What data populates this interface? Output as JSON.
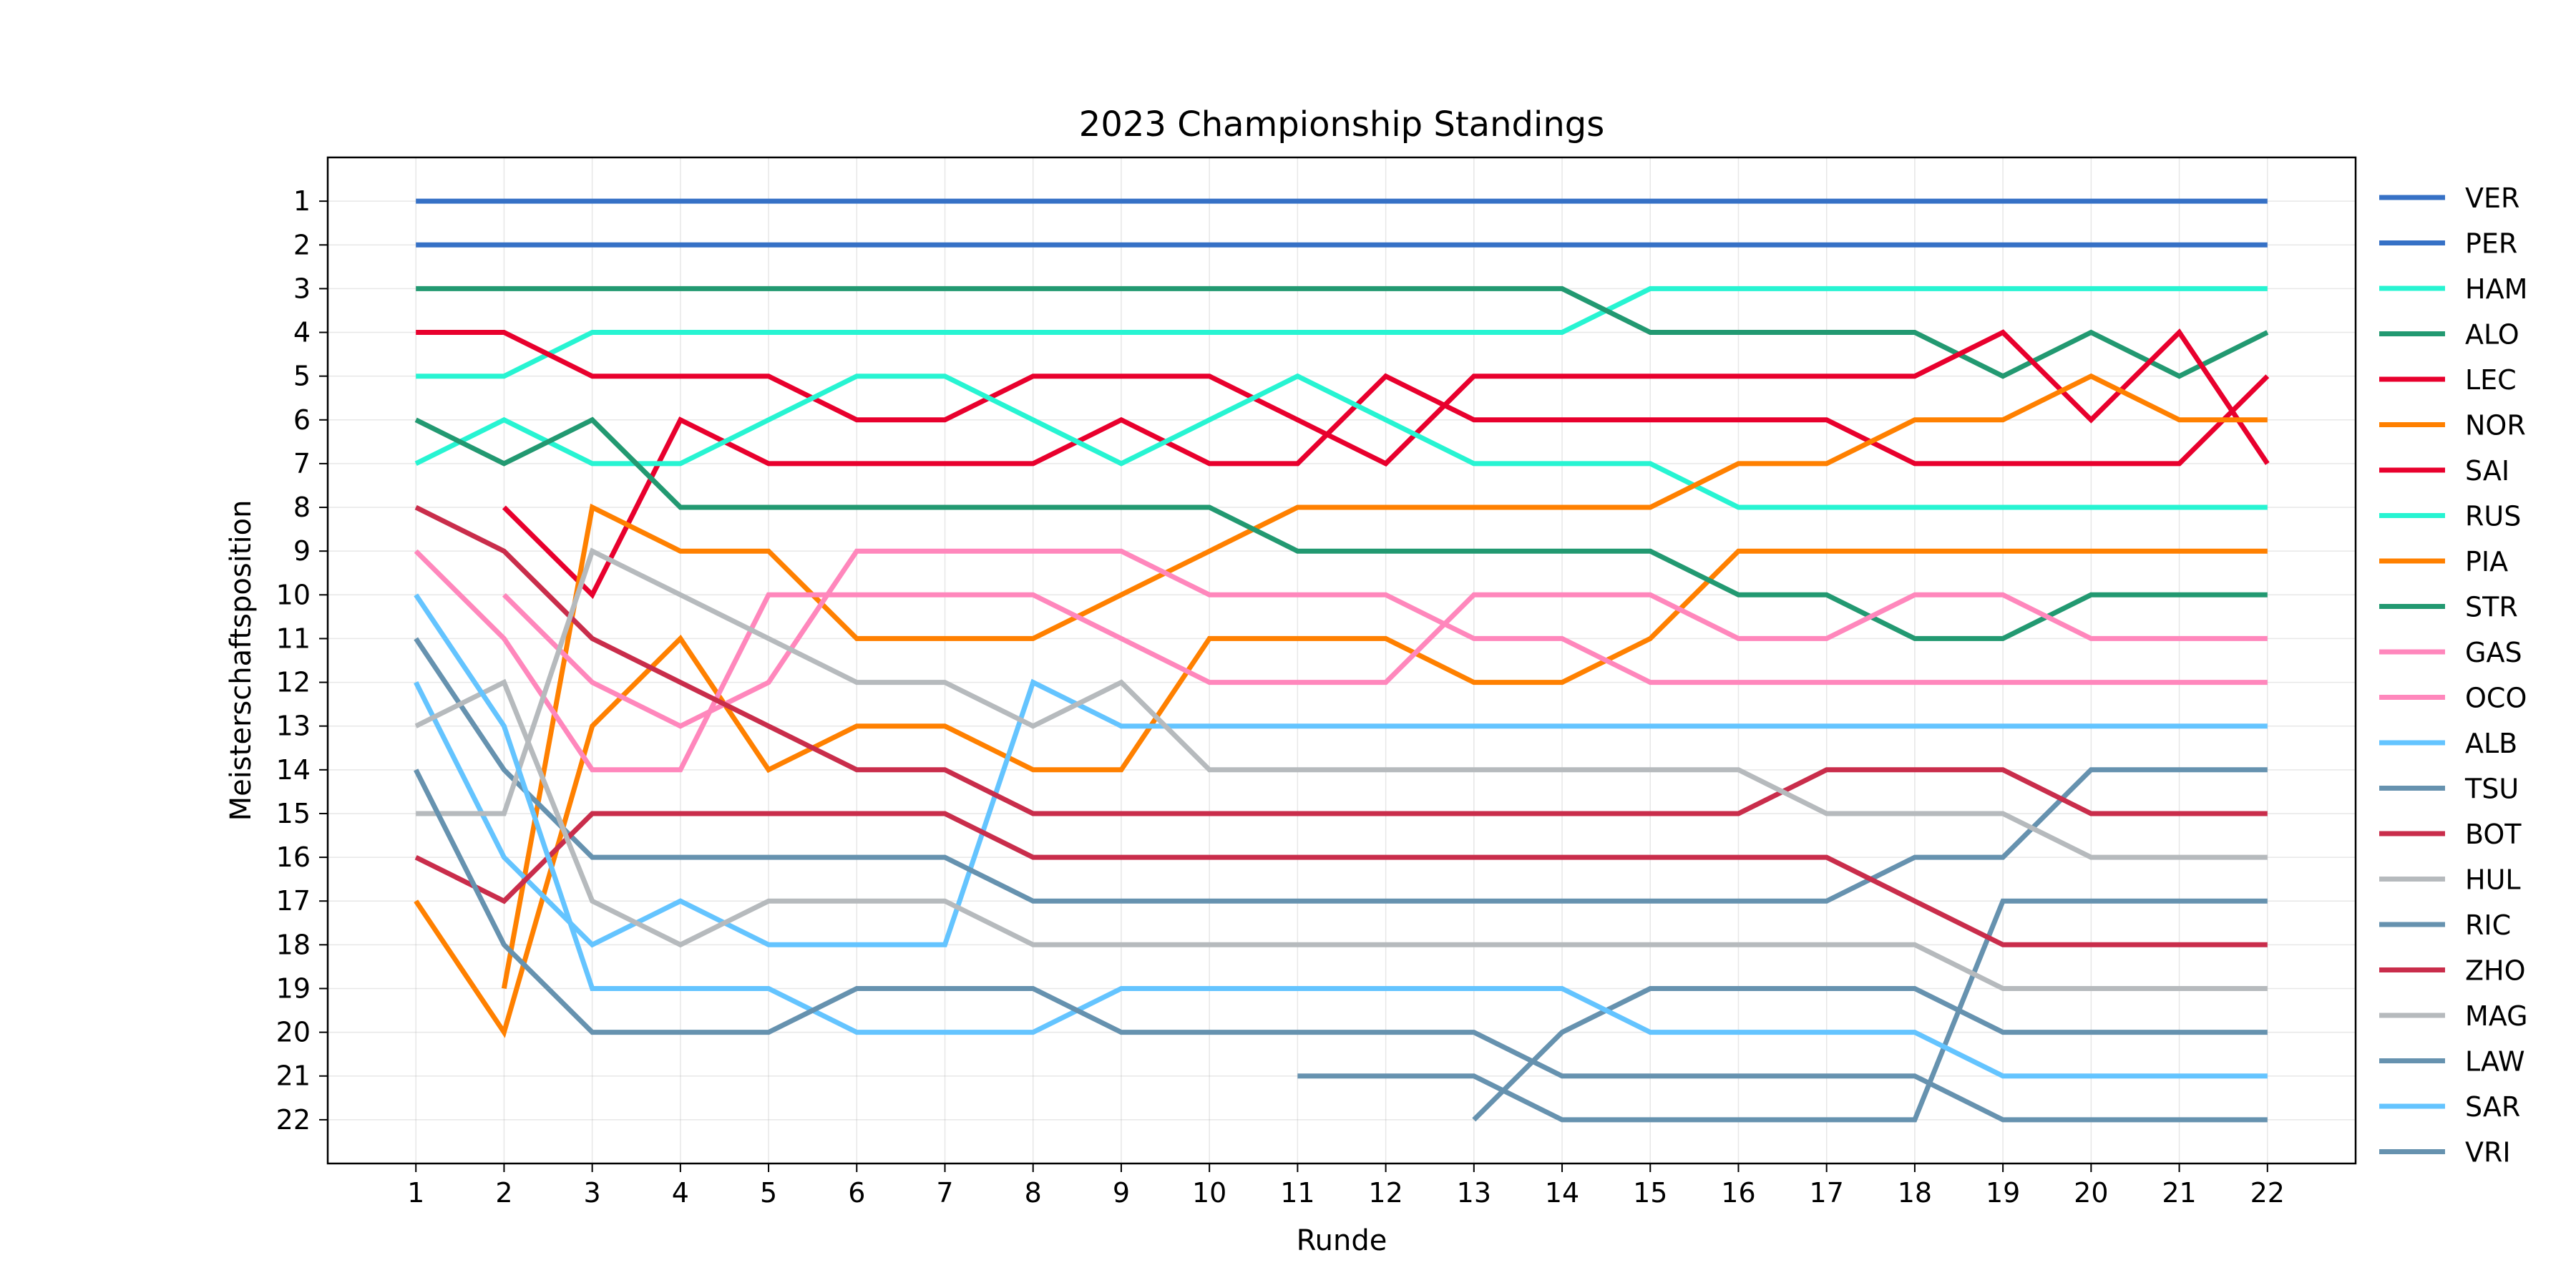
{
  "chart_data": {
    "type": "line",
    "title": "2023 Championship Standings",
    "xlabel": "Runde",
    "ylabel": "Meisterschaftsposition",
    "x": [
      1,
      2,
      3,
      4,
      5,
      6,
      7,
      8,
      9,
      10,
      11,
      12,
      13,
      14,
      15,
      16,
      17,
      18,
      19,
      20,
      21,
      22
    ],
    "xlim": [
      0,
      23
    ],
    "ylim": [
      23,
      0
    ],
    "y_inverted": true,
    "yticks": [
      1,
      2,
      3,
      4,
      5,
      6,
      7,
      8,
      9,
      10,
      11,
      12,
      13,
      14,
      15,
      16,
      17,
      18,
      19,
      20,
      21,
      22
    ],
    "grid": true,
    "legend_position": "outside right",
    "series": [
      {
        "name": "VER",
        "color": "#3671C6",
        "values": [
          1,
          1,
          1,
          1,
          1,
          1,
          1,
          1,
          1,
          1,
          1,
          1,
          1,
          1,
          1,
          1,
          1,
          1,
          1,
          1,
          1,
          1
        ]
      },
      {
        "name": "PER",
        "color": "#3671C6",
        "values": [
          2,
          2,
          2,
          2,
          2,
          2,
          2,
          2,
          2,
          2,
          2,
          2,
          2,
          2,
          2,
          2,
          2,
          2,
          2,
          2,
          2,
          2
        ]
      },
      {
        "name": "HAM",
        "color": "#27F4D2",
        "values": [
          5,
          5,
          4,
          4,
          4,
          4,
          4,
          4,
          4,
          4,
          4,
          4,
          4,
          4,
          3,
          3,
          3,
          3,
          3,
          3,
          3,
          3
        ]
      },
      {
        "name": "ALO",
        "color": "#229971",
        "values": [
          3,
          3,
          3,
          3,
          3,
          3,
          3,
          3,
          3,
          3,
          3,
          3,
          3,
          3,
          4,
          4,
          4,
          4,
          5,
          4,
          5,
          4
        ]
      },
      {
        "name": "LEC",
        "color": "#E8002D",
        "values": [
          4,
          4,
          5,
          5,
          5,
          6,
          6,
          5,
          5,
          5,
          6,
          7,
          5,
          5,
          5,
          5,
          5,
          5,
          4,
          6,
          4,
          7
        ]
      },
      {
        "name": "NOR",
        "color": "#FF8000",
        "values": [
          17,
          20,
          13,
          11,
          14,
          13,
          13,
          14,
          14,
          11,
          11,
          11,
          12,
          12,
          11,
          9,
          9,
          9,
          9,
          9,
          9,
          9
        ]
      },
      {
        "name": "SAI",
        "color": "#E8002D",
        "values": [
          null,
          8,
          10,
          6,
          7,
          7,
          7,
          7,
          6,
          7,
          7,
          5,
          6,
          6,
          6,
          6,
          6,
          7,
          7,
          7,
          7,
          5
        ]
      },
      {
        "name": "RUS",
        "color": "#27F4D2",
        "values": [
          7,
          6,
          7,
          7,
          6,
          5,
          5,
          6,
          7,
          6,
          5,
          6,
          7,
          7,
          7,
          8,
          8,
          8,
          8,
          8,
          8,
          8
        ]
      },
      {
        "name": "PIA",
        "color": "#FF8000",
        "values": [
          null,
          19,
          8,
          9,
          9,
          11,
          11,
          11,
          10,
          9,
          8,
          8,
          8,
          8,
          8,
          7,
          7,
          6,
          6,
          5,
          6,
          6
        ]
      },
      {
        "name": "STR",
        "color": "#229971",
        "values": [
          6,
          7,
          6,
          8,
          8,
          8,
          8,
          8,
          8,
          8,
          9,
          9,
          9,
          9,
          9,
          10,
          10,
          11,
          11,
          10,
          10,
          10
        ]
      },
      {
        "name": "GAS",
        "color": "#FF87BC",
        "values": [
          9,
          11,
          14,
          14,
          10,
          10,
          10,
          10,
          11,
          12,
          12,
          12,
          10,
          10,
          10,
          11,
          11,
          10,
          10,
          11,
          11,
          11
        ]
      },
      {
        "name": "OCO",
        "color": "#FF87BC",
        "values": [
          null,
          10,
          12,
          13,
          12,
          9,
          9,
          9,
          9,
          10,
          10,
          10,
          11,
          11,
          12,
          12,
          12,
          12,
          12,
          12,
          12,
          12
        ]
      },
      {
        "name": "ALB",
        "color": "#64C4FF",
        "values": [
          12,
          16,
          18,
          17,
          18,
          18,
          18,
          12,
          13,
          13,
          13,
          13,
          13,
          13,
          13,
          13,
          13,
          13,
          13,
          13,
          13,
          13
        ]
      },
      {
        "name": "TSU",
        "color": "#6692AF",
        "values": [
          11,
          14,
          16,
          16,
          16,
          16,
          16,
          17,
          17,
          17,
          17,
          17,
          17,
          17,
          17,
          17,
          17,
          16,
          16,
          14,
          14,
          14
        ]
      },
      {
        "name": "BOT",
        "color": "#C92D4B",
        "values": [
          8,
          9,
          11,
          12,
          13,
          14,
          14,
          15,
          15,
          15,
          15,
          15,
          15,
          15,
          15,
          15,
          14,
          14,
          14,
          15,
          15,
          15
        ]
      },
      {
        "name": "HUL",
        "color": "#B6BABD",
        "values": [
          15,
          15,
          9,
          10,
          11,
          12,
          12,
          13,
          12,
          14,
          14,
          14,
          14,
          14,
          14,
          14,
          15,
          15,
          15,
          16,
          16,
          16
        ]
      },
      {
        "name": "RIC",
        "color": "#6692AF",
        "values": [
          null,
          null,
          null,
          null,
          null,
          null,
          null,
          null,
          null,
          null,
          21,
          21,
          21,
          22,
          22,
          22,
          22,
          22,
          17,
          17,
          17,
          17
        ]
      },
      {
        "name": "ZHO",
        "color": "#C92D4B",
        "values": [
          16,
          17,
          15,
          15,
          15,
          15,
          15,
          16,
          16,
          16,
          16,
          16,
          16,
          16,
          16,
          16,
          16,
          17,
          18,
          18,
          18,
          18
        ]
      },
      {
        "name": "MAG",
        "color": "#B6BABD",
        "values": [
          13,
          12,
          17,
          18,
          17,
          17,
          17,
          18,
          18,
          18,
          18,
          18,
          18,
          18,
          18,
          18,
          18,
          18,
          19,
          19,
          19,
          19
        ]
      },
      {
        "name": "LAW",
        "color": "#6692AF",
        "values": [
          null,
          null,
          null,
          null,
          null,
          null,
          null,
          null,
          null,
          null,
          null,
          null,
          22,
          20,
          19,
          19,
          19,
          19,
          20,
          20,
          20,
          20
        ]
      },
      {
        "name": "SAR",
        "color": "#64C4FF",
        "values": [
          10,
          13,
          19,
          19,
          19,
          20,
          20,
          20,
          19,
          19,
          19,
          19,
          19,
          19,
          20,
          20,
          20,
          20,
          21,
          21,
          21,
          21
        ]
      },
      {
        "name": "VRI",
        "color": "#6692AF",
        "values": [
          14,
          18,
          20,
          20,
          20,
          19,
          19,
          19,
          20,
          20,
          20,
          20,
          20,
          21,
          21,
          21,
          21,
          21,
          22,
          22,
          22,
          22
        ]
      }
    ]
  }
}
